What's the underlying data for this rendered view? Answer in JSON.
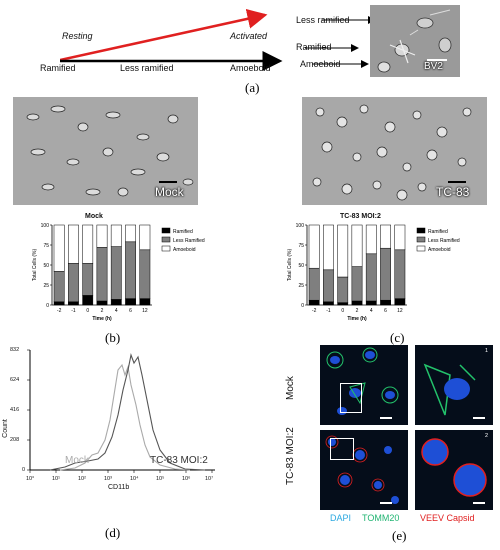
{
  "panel_a": {
    "resting_label": "Resting",
    "activated_label": "Activated",
    "stages": [
      "Ramified",
      "Less ramified",
      "Amoeboid"
    ],
    "inset_labels": [
      "Less ramified",
      "Ramified",
      "Amoeboid"
    ],
    "inset_tag": "BV2",
    "caption": "(a)",
    "arrow_color": "#e02020"
  },
  "panel_b": {
    "image_tag": "Mock",
    "caption": "(b)"
  },
  "panel_c": {
    "image_tag": "TC-83",
    "caption": "(c)"
  },
  "panel_d": {
    "caption": "(d)",
    "mock_label": "Mock",
    "tc_label": "TC-83 MOI:2",
    "ylabel": "Count",
    "xlabel": "CD11b",
    "y_ticks": [
      "832",
      "624",
      "416",
      "208",
      "0"
    ],
    "x_ticks": [
      "10°",
      "10¹",
      "10²",
      "10³",
      "10⁴",
      "10⁵",
      "10⁶",
      "10⁷"
    ]
  },
  "panel_e": {
    "caption": "(e)",
    "row_labels": [
      "Mock",
      "TC-83 MOI:2"
    ],
    "inset_numbers": [
      "1",
      "2"
    ],
    "legend": [
      "DAPI",
      "TOMM20",
      "VEEV Capsid"
    ],
    "legend_colors": [
      "#2aa8e0",
      "#22b573",
      "#e02020"
    ]
  },
  "chart_data": [
    {
      "type": "bar",
      "title": "Mock",
      "xlabel": "Time (h)",
      "ylabel": "Total Cells (%)",
      "ylim": [
        0,
        100
      ],
      "y_ticks": [
        "0",
        "25",
        "50",
        "75",
        "100"
      ],
      "categories": [
        "-2",
        "-1",
        "0",
        "2",
        "4",
        "6",
        "12"
      ],
      "series": [
        {
          "name": "Ramified",
          "color": "#000000",
          "values": [
            4,
            4,
            12,
            5,
            7,
            8,
            8
          ]
        },
        {
          "name": "Less Ramified",
          "color": "#7f7f7f",
          "values": [
            38,
            48,
            40,
            67,
            66,
            71,
            61
          ]
        },
        {
          "name": "Amoeboid",
          "color": "#ffffff",
          "values": [
            58,
            48,
            48,
            28,
            27,
            21,
            31
          ]
        }
      ],
      "legend": "right"
    },
    {
      "type": "bar",
      "title": "TC-83 MOI:2",
      "xlabel": "Time (h)",
      "ylabel": "Total Cells (%)",
      "ylim": [
        0,
        100
      ],
      "y_ticks": [
        "0",
        "25",
        "50",
        "75",
        "100"
      ],
      "categories": [
        "-2",
        "-1",
        "0",
        "2",
        "4",
        "6",
        "12"
      ],
      "series": [
        {
          "name": "Ramified",
          "color": "#000000",
          "values": [
            6,
            4,
            3,
            5,
            5,
            6,
            8
          ]
        },
        {
          "name": "Less Ramified",
          "color": "#7f7f7f",
          "values": [
            40,
            40,
            32,
            43,
            59,
            65,
            61
          ]
        },
        {
          "name": "Amoeboid",
          "color": "#ffffff",
          "values": [
            54,
            56,
            65,
            52,
            36,
            29,
            31
          ]
        }
      ],
      "legend": "right"
    }
  ]
}
